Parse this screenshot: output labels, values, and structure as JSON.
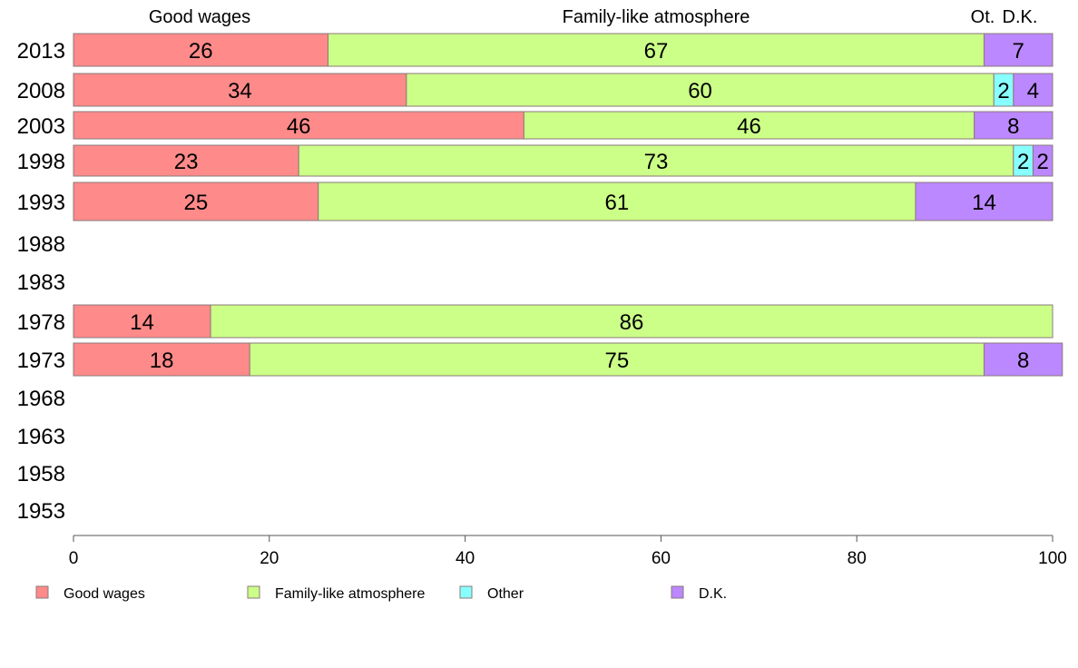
{
  "chart_data": {
    "type": "bar",
    "orientation": "horizontal",
    "stacked": true,
    "categories": [
      "2013",
      "2008",
      "2003",
      "1998",
      "1993",
      "1988",
      "1983",
      "1978",
      "1973",
      "1968",
      "1963",
      "1958",
      "1953"
    ],
    "series": [
      {
        "name": "Good wages",
        "color": "#ff8a8a",
        "values": [
          26,
          34,
          46,
          23,
          25,
          null,
          null,
          14,
          18,
          null,
          null,
          null,
          null
        ]
      },
      {
        "name": "Family-like atmosphere",
        "color": "#ccff88",
        "values": [
          67,
          60,
          46,
          73,
          61,
          null,
          null,
          86,
          75,
          null,
          null,
          null,
          null
        ]
      },
      {
        "name": "Other",
        "color": "#88ffff",
        "values": [
          0,
          2,
          0,
          2,
          0,
          null,
          null,
          0,
          0,
          null,
          null,
          null,
          null
        ]
      },
      {
        "name": "D.K.",
        "color": "#bb88ff",
        "values": [
          7,
          4,
          8,
          2,
          14,
          null,
          null,
          0,
          8,
          null,
          null,
          null,
          null
        ]
      }
    ],
    "top_labels": [
      "Good wages",
      "Family-like atmosphere",
      "Ot.",
      "D.K."
    ],
    "xlim": [
      0,
      100
    ],
    "xticks": [
      0,
      20,
      40,
      60,
      80,
      100
    ],
    "grid": false,
    "legend_position": "bottom"
  }
}
